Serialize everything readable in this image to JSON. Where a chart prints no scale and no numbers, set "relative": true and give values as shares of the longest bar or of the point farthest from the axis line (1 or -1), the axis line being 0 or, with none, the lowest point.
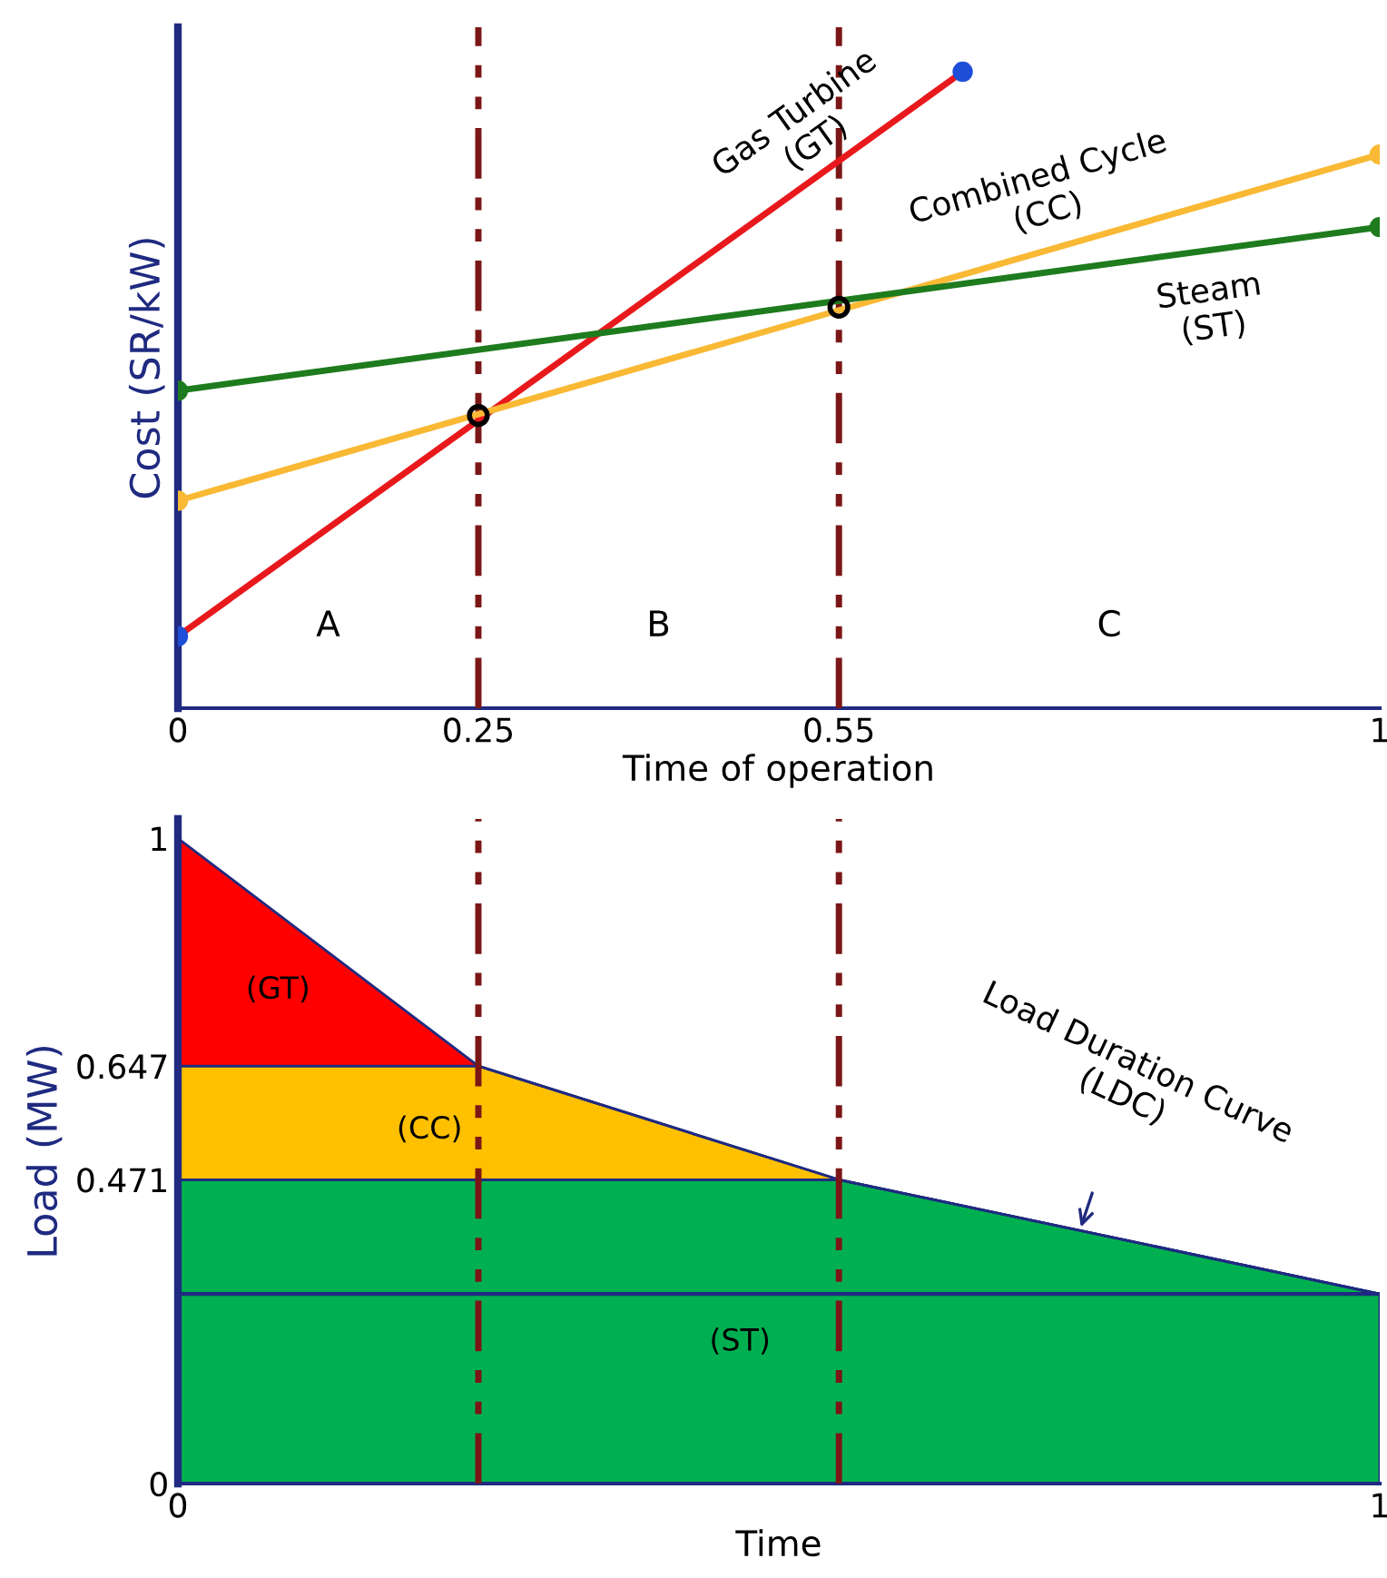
{
  "chart_data": [
    {
      "type": "line",
      "relative": true,
      "ylabel": "Cost (SR/kW)",
      "xlabel": "Time of operation",
      "xlim": [
        0,
        1
      ],
      "xticks": [
        0,
        0.25,
        0.55,
        1
      ],
      "marker": "circle",
      "ref_lines": [
        {
          "axis": "x",
          "value": 0.25,
          "color": "#7b1616",
          "line_style": "dashed"
        },
        {
          "axis": "x",
          "value": 0.55,
          "color": "#7b1616",
          "line_style": "dashed"
        }
      ],
      "annotations": [
        "A",
        "B",
        "C"
      ],
      "series": [
        {
          "name": "Gas Turbine\n(GT)",
          "color": "#e8191c",
          "colors": [
            "#1f4fd8",
            "#1f4fd8"
          ],
          "x": [
            0,
            0.653
          ],
          "values": [
            0.113,
            1.0
          ]
        },
        {
          "name": "Combined Cycle\n(CC)",
          "color": "#f9b935",
          "x": [
            0,
            1
          ],
          "values": [
            0.326,
            0.87
          ]
        },
        {
          "name": "Steam\n(ST)",
          "color": "#1e7b1e",
          "x": [
            0,
            1
          ],
          "values": [
            0.499,
            0.756
          ]
        },
        {
          "type": "scatter",
          "color": "#000000",
          "x": [
            0.25,
            0.55
          ],
          "values": [
            0.46,
            0.63
          ]
        }
      ]
    },
    {
      "type": "area",
      "stacked": true,
      "ylabel": "Load (MW)",
      "xlabel": "Time",
      "x": [
        0,
        0.25,
        0.55,
        1
      ],
      "xlim": [
        0,
        1
      ],
      "xticks": [
        0,
        1
      ],
      "ylim": [
        0,
        1.03
      ],
      "yticks": [
        0,
        0.471,
        0.647,
        1
      ],
      "ref_lines": [
        {
          "axis": "x",
          "value": 0.25,
          "color": "#7b1616",
          "line_style": "dashed"
        },
        {
          "axis": "x",
          "value": 0.55,
          "color": "#7b1616",
          "line_style": "dashed"
        },
        {
          "axis": "y",
          "value": 0.294,
          "color": "#1f2a80",
          "line_style": "solid"
        }
      ],
      "annotations": [
        "(GT)",
        "(CC)",
        "(ST)",
        {
          "text": "Load Duration Curve\n(LDC)",
          "x": 0.75,
          "y": 0.39
        }
      ],
      "series": [
        {
          "color": "#00b050",
          "values": [
            0.471,
            0.471,
            0.471,
            0.294
          ]
        },
        {
          "color": "#ffc000",
          "values": [
            0.176,
            0.176,
            0,
            0
          ]
        },
        {
          "color": "#ff0000",
          "values": [
            0.353,
            0,
            0,
            0
          ]
        }
      ]
    }
  ]
}
